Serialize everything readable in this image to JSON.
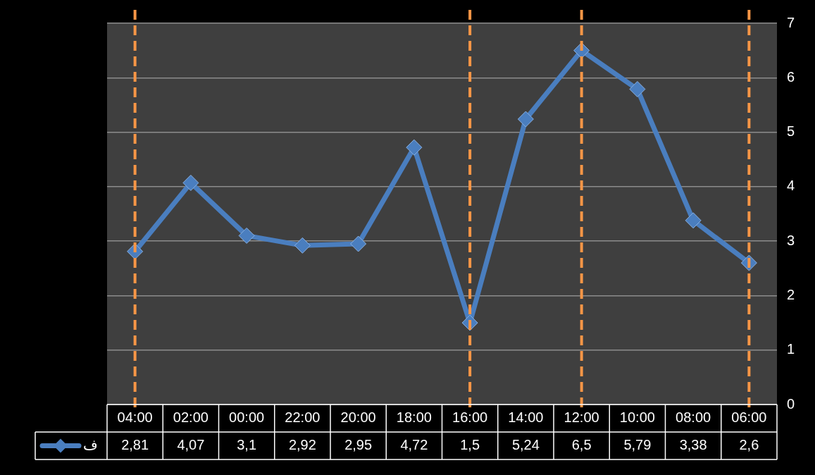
{
  "chart_data": {
    "type": "line",
    "categories": [
      "04:00",
      "02:00",
      "00:00",
      "22:00",
      "20:00",
      "18:00",
      "16:00",
      "14:00",
      "12:00",
      "10:00",
      "08:00",
      "06:00"
    ],
    "series": [
      {
        "name": "ف",
        "color": "#4a7ebf",
        "values": [
          2.81,
          4.07,
          3.1,
          2.92,
          2.95,
          4.72,
          1.5,
          5.24,
          6.5,
          5.79,
          3.38,
          2.6
        ],
        "value_labels": [
          "2,81",
          "4,07",
          "3,1",
          "2,92",
          "2,95",
          "4,72",
          "1,5",
          "5,24",
          "6,5",
          "5,79",
          "3,38",
          "2,6"
        ]
      }
    ],
    "ylim": [
      0,
      7
    ],
    "yticks": [
      0,
      1,
      2,
      3,
      4,
      5,
      6,
      7
    ],
    "grid": "y",
    "marker": "diamond",
    "line_style": "solid",
    "legend": "bottom left",
    "ref_lines": [
      {
        "axis": "x",
        "value": "04:00",
        "color": "#f79646",
        "line_style": "dashed"
      },
      {
        "axis": "x",
        "value": "16:00",
        "color": "#f79646",
        "line_style": "dashed"
      },
      {
        "axis": "x",
        "value": "12:00",
        "color": "#f79646",
        "line_style": "dashed"
      },
      {
        "axis": "x",
        "value": "06:00",
        "color": "#f79646",
        "line_style": "dashed"
      }
    ]
  }
}
